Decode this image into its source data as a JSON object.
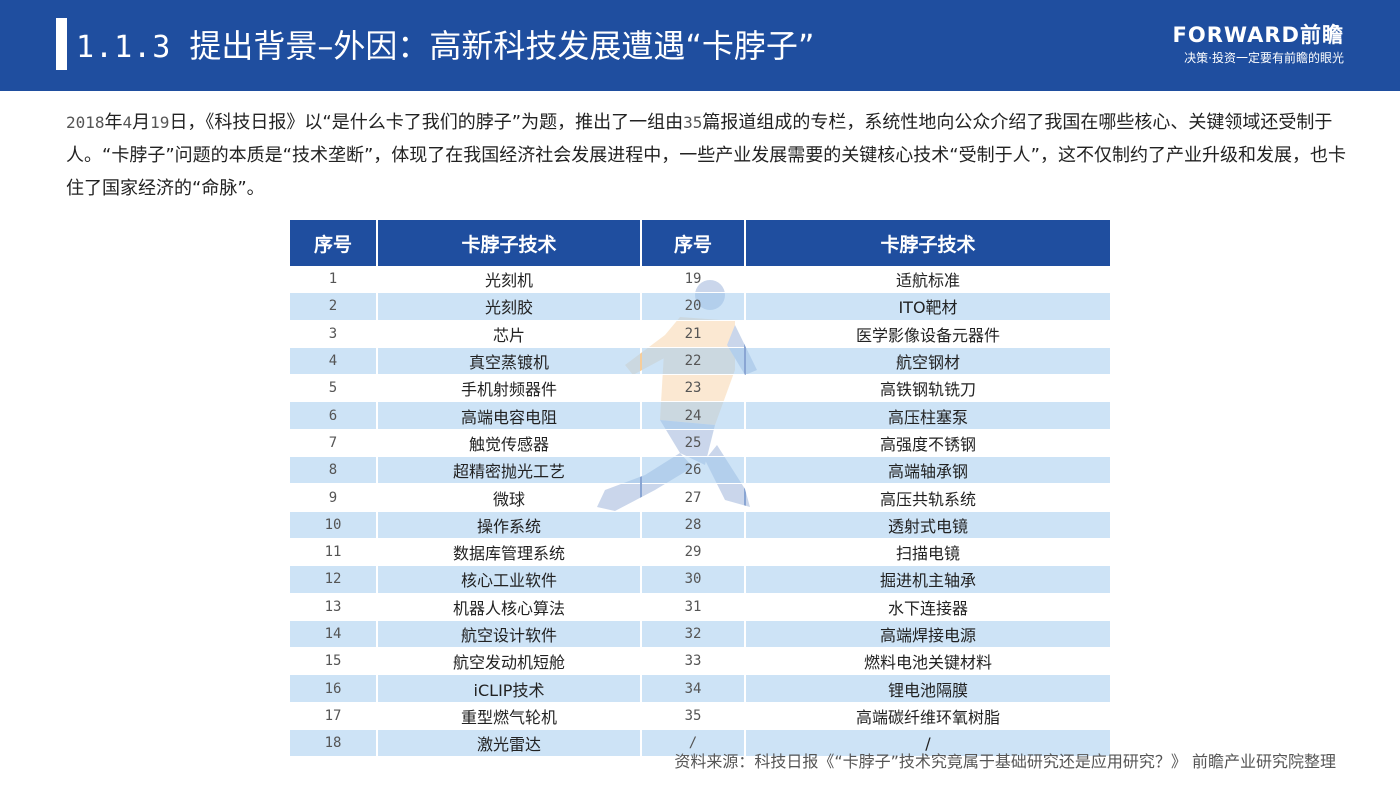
{
  "header": {
    "section_number": "1.1.3",
    "title": "提出背景–外因：高新科技发展遭遇“卡脖子”",
    "logo_main": "FORWARD前瞻",
    "logo_sub": "决策·投资一定要有前瞻的眼光",
    "bg_color": "#1f4e9f"
  },
  "intro": {
    "year": "2018",
    "t1": "年",
    "month": "4",
    "t2": "月",
    "day": "19",
    "t3": "日，《科技日报》以“是什么卡了我们的脖子”为题，推出了一组由",
    "count": "35",
    "t4": "篇报道组成的专栏，系统性地向公众介绍了我国在哪些核心、关键领域还受制于人。“卡脖子”问题的本质是“技术垄断”，体现了在我国经济社会发展进程中，一些产业发展需要的关键核心技术“受制于人”，这不仅制约了产业升级和发展，也卡住了国家经济的“命脉”。"
  },
  "table": {
    "headers": [
      "序号",
      "卡脖子技术",
      "序号",
      "卡脖子技术"
    ],
    "rows": [
      [
        "1",
        "光刻机",
        "19",
        "适航标准"
      ],
      [
        "2",
        "光刻胶",
        "20",
        "ITO靶材"
      ],
      [
        "3",
        "芯片",
        "21",
        "医学影像设备元器件"
      ],
      [
        "4",
        "真空蒸镀机",
        "22",
        "航空钢材"
      ],
      [
        "5",
        "手机射频器件",
        "23",
        "高铁钢轨铣刀"
      ],
      [
        "6",
        "高端电容电阻",
        "24",
        "高压柱塞泵"
      ],
      [
        "7",
        "触觉传感器",
        "25",
        "高强度不锈钢"
      ],
      [
        "8",
        "超精密抛光工艺",
        "26",
        "高端轴承钢"
      ],
      [
        "9",
        "微球",
        "27",
        "高压共轨系统"
      ],
      [
        "10",
        "操作系统",
        "28",
        "透射式电镜"
      ],
      [
        "11",
        "数据库管理系统",
        "29",
        "扫描电镜"
      ],
      [
        "12",
        "核心工业软件",
        "30",
        "掘进机主轴承"
      ],
      [
        "13",
        "机器人核心算法",
        "31",
        "水下连接器"
      ],
      [
        "14",
        "航空设计软件",
        "32",
        "高端焊接电源"
      ],
      [
        "15",
        "航空发动机短舱",
        "33",
        "燃料电池关键材料"
      ],
      [
        "16",
        "iCLIP技术",
        "34",
        "锂电池隔膜"
      ],
      [
        "17",
        "重型燃气轮机",
        "35",
        "高端碳纤维环氧树脂"
      ],
      [
        "18",
        "激光雷达",
        "/",
        "/"
      ]
    ],
    "header_color": "#1f4e9f",
    "stripe_color": "#bfdbf4"
  },
  "source": "资料来源：科技日报《“卡脖子”技术究竟属于基础研究还是应用研究？》 前瞻产业研究院整理",
  "watermark_icon": "running-figure-icon"
}
